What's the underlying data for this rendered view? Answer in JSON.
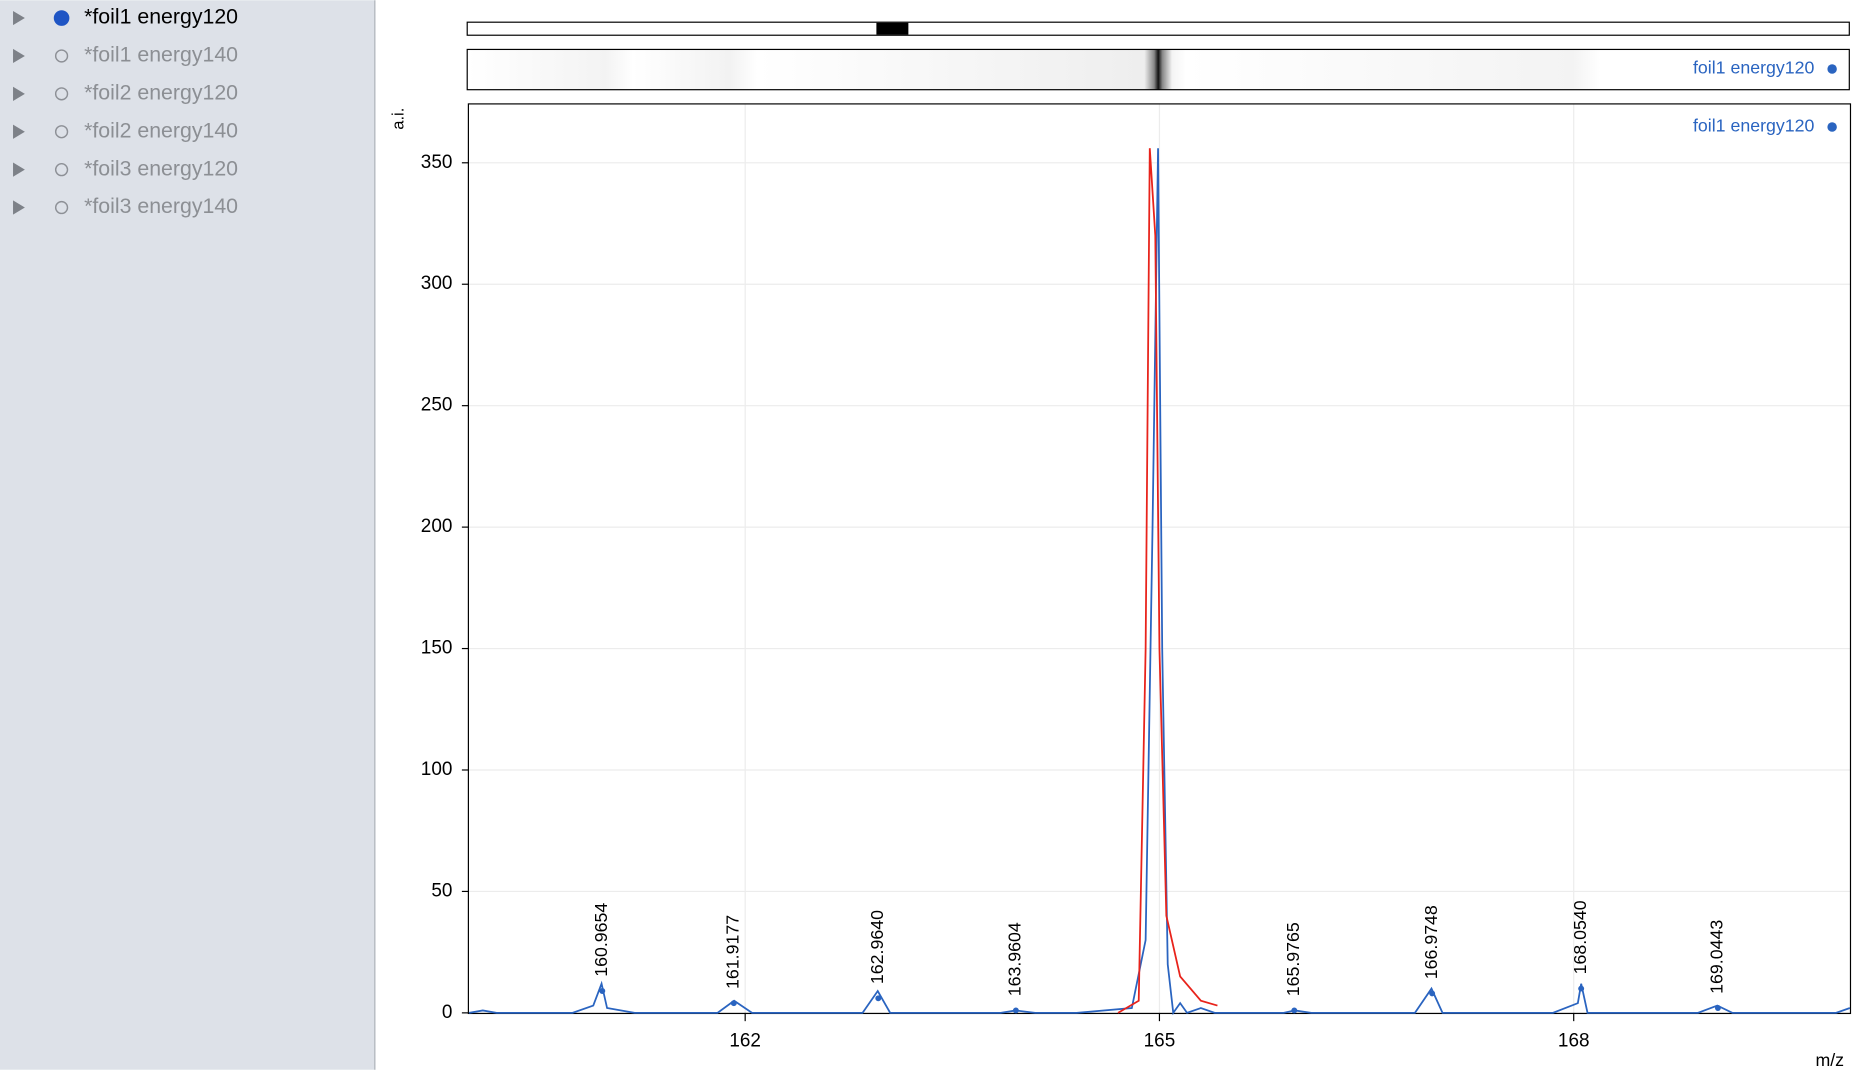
{
  "sidebar": {
    "items": [
      "*foil1 energy120",
      "*foil1 energy140",
      "*foil2 energy120",
      "*foil2 energy140",
      "*foil3 energy120",
      "*foil3 energy140"
    ],
    "selected": 0
  },
  "overview_legend": "foil1 energy120",
  "chart_data": {
    "type": "line",
    "y_label": "a.i.",
    "x_label": "m/z",
    "xlim": [
      160,
      170
    ],
    "xticks": [
      162,
      165,
      168
    ],
    "ylim": [
      0,
      374
    ],
    "yticks": [
      0,
      50,
      100,
      150,
      200,
      250,
      300,
      350
    ],
    "grid": true,
    "legend": "top-right",
    "series": [
      {
        "name": "foil1 energy120",
        "color": "#2a64c0",
        "x": [
          160.0,
          160.1,
          160.2,
          160.75,
          160.9,
          160.96,
          161.0,
          161.2,
          161.8,
          161.92,
          162.05,
          162.85,
          162.96,
          163.05,
          163.85,
          163.96,
          164.1,
          164.4,
          164.8,
          164.9,
          164.95,
          164.99,
          165.02,
          165.06,
          165.1,
          165.15,
          165.2,
          165.3,
          165.4,
          165.9,
          165.98,
          166.1,
          166.85,
          166.97,
          167.05,
          167.85,
          168.03,
          168.054,
          168.1,
          168.9,
          169.04,
          169.15,
          169.9,
          170.0
        ],
        "values": [
          0,
          1,
          0,
          0,
          3,
          12,
          2,
          0,
          0,
          5,
          0,
          0,
          9,
          0,
          0,
          1,
          0,
          0,
          2,
          30,
          200,
          356,
          150,
          20,
          0,
          4,
          0,
          2,
          0,
          0,
          1,
          0,
          0,
          10,
          0,
          0,
          4,
          12,
          0,
          0,
          3,
          0,
          0,
          2
        ]
      },
      {
        "color": "#e8231b",
        "x": [
          164.7,
          164.85,
          164.9,
          164.93,
          164.97,
          165.0,
          165.05,
          165.15,
          165.3,
          165.42
        ],
        "values": [
          0,
          5,
          150,
          356,
          320,
          150,
          40,
          15,
          5,
          3
        ]
      }
    ],
    "annotations": [
      {
        "x": 160.9654,
        "y": 9,
        "label": "160.9654"
      },
      {
        "x": 161.9177,
        "y": 4,
        "label": "161.9177"
      },
      {
        "x": 162.964,
        "y": 6,
        "label": "162.9640"
      },
      {
        "x": 163.9604,
        "y": 1,
        "label": "163.9604"
      },
      {
        "x": 165.9765,
        "y": 1,
        "label": "165.9765"
      },
      {
        "x": 166.9748,
        "y": 8,
        "label": "166.9748"
      },
      {
        "x": 168.054,
        "y": 10,
        "label": "168.0540"
      },
      {
        "x": 169.0443,
        "y": 2,
        "label": "169.0443"
      }
    ]
  }
}
